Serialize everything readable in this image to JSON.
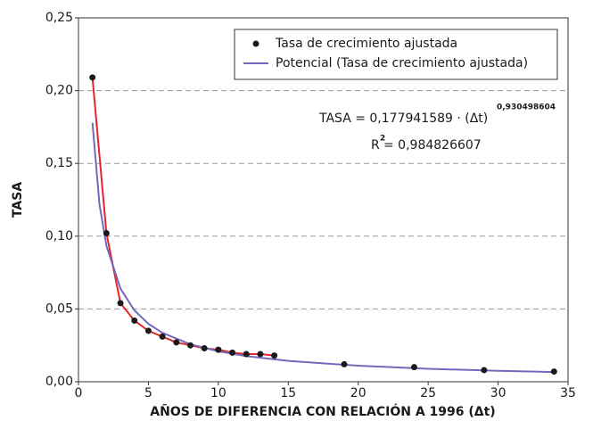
{
  "chart_data": {
    "type": "scatter",
    "x_label": "AÑOS DE DIFERENCIA CON RELACIÓN A 1996 (Δt)",
    "y_label": "TASA",
    "xlim": [
      0,
      35
    ],
    "ylim": [
      0,
      0.25
    ],
    "xticks": [
      0,
      5,
      10,
      15,
      20,
      25,
      30,
      35
    ],
    "yticks": [
      {
        "value": 0,
        "label": "0,00"
      },
      {
        "value": 0.05,
        "label": "0,05"
      },
      {
        "value": 0.1,
        "label": "0,10"
      },
      {
        "value": 0.15,
        "label": "0,15"
      },
      {
        "value": 0.2,
        "label": "0,20"
      },
      {
        "value": 0.25,
        "label": "0,25"
      }
    ],
    "grid": true,
    "series": [
      {
        "name": "Tasa de crecimiento ajustada",
        "style": "markers",
        "color": "#1a1a1a",
        "x": [
          1,
          2,
          3,
          4,
          5,
          6,
          7,
          8,
          9,
          10,
          11,
          12,
          13,
          14,
          19,
          24,
          29,
          34
        ],
        "values": [
          0.209,
          0.102,
          0.054,
          0.042,
          0.035,
          0.031,
          0.027,
          0.025,
          0.023,
          0.022,
          0.02,
          0.019,
          0.019,
          0.018,
          0.012,
          0.01,
          0.008,
          0.007
        ]
      },
      {
        "style": "line",
        "color": "#e3262b",
        "x": [
          1,
          2,
          3,
          4,
          5,
          6,
          7,
          8,
          9,
          10,
          11,
          12,
          13,
          14
        ],
        "values": [
          0.209,
          0.102,
          0.054,
          0.042,
          0.035,
          0.031,
          0.027,
          0.025,
          0.023,
          0.022,
          0.02,
          0.019,
          0.019,
          0.018
        ]
      },
      {
        "name": "Potencial (Tasa de crecimiento ajustada)",
        "style": "line",
        "color": "#7468bd",
        "x": [
          1,
          1.5,
          2,
          3,
          4,
          5,
          6,
          8,
          10,
          12,
          15,
          20,
          25,
          30,
          34
        ],
        "values": [
          0.1779,
          0.122,
          0.0934,
          0.064,
          0.049,
          0.0398,
          0.0336,
          0.0257,
          0.0209,
          0.0176,
          0.0143,
          0.011,
          0.0089,
          0.0075,
          0.0067
        ]
      }
    ],
    "legend_position": "top-right",
    "annotations": {
      "equation": "TASA = 0,177941589 · (Δt)",
      "equation_exponent": "0,930498604",
      "r2_symbol": "R",
      "r2_exponent": "2",
      "r2_value": "= 0,984826607"
    }
  }
}
